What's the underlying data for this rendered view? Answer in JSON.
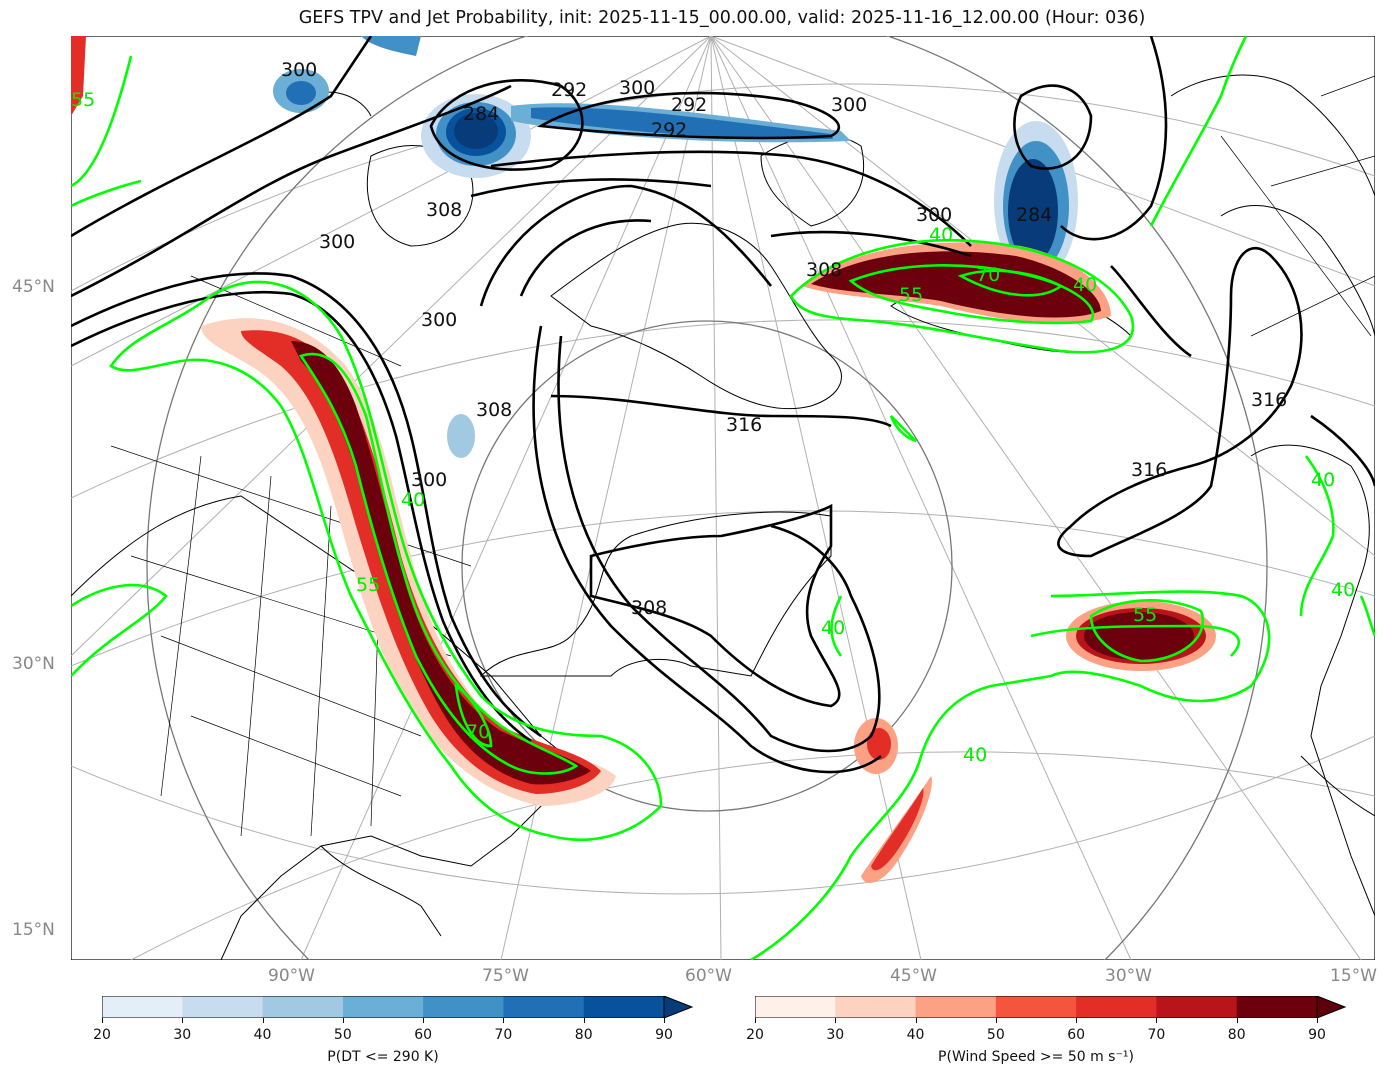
{
  "title": "GEFS TPV and Jet Probability, init: 2025-11-15_00.00.00, valid: 2025-11-16_12.00.00 (Hour: 036)",
  "lat_labels": [
    "45°N",
    "30°N",
    "15°N"
  ],
  "lon_labels": [
    "90°W",
    "75°W",
    "60°W",
    "45°W",
    "30°W",
    "15°W"
  ],
  "contour_labels": {
    "theta": [
      "292",
      "300",
      "292",
      "300",
      "284",
      "292",
      "300",
      "308",
      "300",
      "300",
      "308",
      "300",
      "284",
      "300",
      "316",
      "316",
      "316",
      "308",
      "308"
    ],
    "jet": [
      "40",
      "70",
      "55",
      "40",
      "55",
      "70",
      "40",
      "55",
      "40",
      "40",
      "40",
      "40",
      "55"
    ]
  },
  "colorbars": {
    "dt": {
      "label": "P(DT <= 290 K)",
      "ticks": [
        "20",
        "30",
        "40",
        "50",
        "60",
        "70",
        "80",
        "90"
      ],
      "colors": [
        "#e3eef8",
        "#c8dcef",
        "#a1cae2",
        "#6baed6",
        "#4190c6",
        "#2170b5",
        "#08519c",
        "#083b7a"
      ]
    },
    "wind": {
      "label": "P(Wind Speed >= 50 m s⁻¹)",
      "ticks": [
        "20",
        "30",
        "40",
        "50",
        "60",
        "70",
        "80",
        "90"
      ],
      "colors": [
        "#fff0ea",
        "#fcd3c1",
        "#fca183",
        "#f5553d",
        "#e22e27",
        "#b81419",
        "#6d000d",
        "#5e000b"
      ]
    }
  },
  "colors": {
    "jet_contour": "#00ff00",
    "theta_contour": "#000000",
    "grid": "#aaaaaa"
  }
}
